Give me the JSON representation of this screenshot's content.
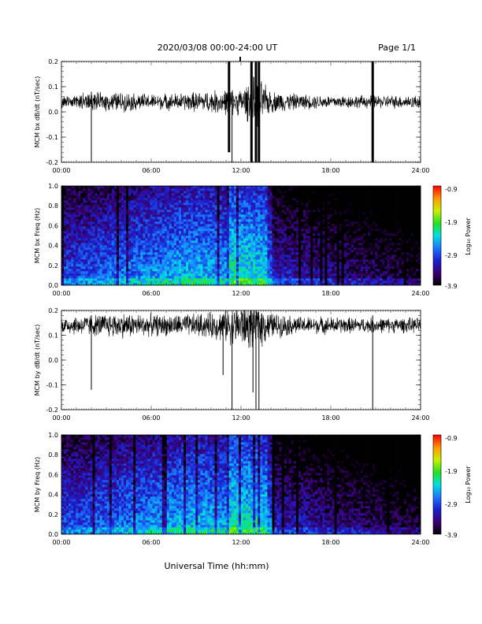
{
  "header": {
    "title": "2020/03/08  00:00-24:00 UT",
    "page": "Page 1/1"
  },
  "xlabel": "Universal Time (hh:mm)",
  "colors": {
    "trace": "#000000",
    "background": "#ffffff"
  },
  "chart_data": [
    {
      "type": "line",
      "name": "panel-bx-dbdt",
      "ylabel": "MCM bx dB/dt (nT/sec)",
      "ylim": [
        -0.2,
        0.2
      ],
      "yticks": [
        "-0.2",
        "-0.1",
        "0.0",
        "0.1",
        "0.2"
      ],
      "yticks_values": [
        -0.2,
        -0.1,
        0.0,
        0.1,
        0.2
      ],
      "xlim": [
        0,
        24
      ],
      "xticks": [
        "00:00",
        "06:00",
        "12:00",
        "18:00",
        "24:00"
      ],
      "baseline": 0.04,
      "envelope_hours": [
        0,
        2,
        4,
        6,
        8,
        10,
        11,
        12,
        13,
        14,
        16,
        18,
        20,
        22,
        24
      ],
      "envelope_half_width": [
        0.03,
        0.04,
        0.045,
        0.035,
        0.04,
        0.05,
        0.06,
        0.06,
        0.12,
        0.05,
        0.035,
        0.03,
        0.03,
        0.03,
        0.03
      ],
      "spikes": [
        {
          "hour": 2.0,
          "low": -0.2
        },
        {
          "hour": 11.2,
          "low": -0.16,
          "high": 0.2
        },
        {
          "hour": 11.4,
          "low": -0.2
        },
        {
          "hour": 12.7,
          "low": -0.2,
          "high": 0.2
        },
        {
          "hour": 13.0,
          "low": -0.2,
          "high": 0.2
        },
        {
          "hour": 13.2,
          "low": -0.2,
          "high": 0.2
        },
        {
          "hour": 20.8,
          "low": -0.2,
          "high": 0.2
        }
      ]
    },
    {
      "type": "heatmap",
      "name": "panel-bx-spectrogram",
      "ylabel": "MCM bx Freq (Hz)",
      "ylim": [
        0,
        1.0
      ],
      "yticks": [
        "0.0",
        "0.2",
        "0.4",
        "0.6",
        "0.8",
        "1.0"
      ],
      "yticks_values": [
        0,
        0.2,
        0.4,
        0.6,
        0.8,
        1.0
      ],
      "xlim": [
        0,
        24
      ],
      "xticks": [
        "00:00",
        "06:00",
        "12:00",
        "18:00",
        "24:00"
      ],
      "colorbar_label": "Log₁₀ Power",
      "colorbar_ticks": [
        "-0.9",
        "-1.9",
        "-2.9",
        "-3.9"
      ],
      "colorbar_ticks_values": [
        -0.9,
        -1.9,
        -2.9,
        -3.9
      ],
      "clim": [
        -3.9,
        -0.9
      ]
    },
    {
      "type": "line",
      "name": "panel-by-dbdt",
      "ylabel": "MCM by dB/dt (nT/sec)",
      "ylim": [
        -0.2,
        0.2
      ],
      "yticks": [
        "-0.2",
        "-0.1",
        "0.0",
        "0.1",
        "0.2"
      ],
      "yticks_values": [
        -0.2,
        -0.1,
        0.0,
        0.1,
        0.2
      ],
      "xlim": [
        0,
        24
      ],
      "xticks": [
        "00:00",
        "06:00",
        "12:00",
        "18:00",
        "24:00"
      ],
      "baseline": 0.14,
      "envelope_hours": [
        0,
        2,
        4,
        6,
        8,
        10,
        11,
        12,
        13,
        14,
        16,
        18,
        20,
        22,
        24
      ],
      "envelope_half_width": [
        0.04,
        0.05,
        0.06,
        0.05,
        0.05,
        0.06,
        0.08,
        0.1,
        0.12,
        0.06,
        0.04,
        0.04,
        0.035,
        0.035,
        0.035
      ],
      "spikes": [
        {
          "hour": 2.0,
          "low": -0.12
        },
        {
          "hour": 10.8,
          "low": -0.06
        },
        {
          "hour": 11.4,
          "low": -0.2
        },
        {
          "hour": 12.8,
          "low": -0.13
        },
        {
          "hour": 13.0,
          "low": -0.2
        },
        {
          "hour": 13.2,
          "low": -0.2
        },
        {
          "hour": 20.8,
          "low": -0.2
        }
      ]
    },
    {
      "type": "heatmap",
      "name": "panel-by-spectrogram",
      "ylabel": "MCM by Freq (Hz)",
      "ylim": [
        0,
        1.0
      ],
      "yticks": [
        "0.0",
        "0.2",
        "0.4",
        "0.6",
        "0.8",
        "1.0"
      ],
      "yticks_values": [
        0,
        0.2,
        0.4,
        0.6,
        0.8,
        1.0
      ],
      "xlim": [
        0,
        24
      ],
      "xticks": [
        "00:00",
        "06:00",
        "12:00",
        "18:00",
        "24:00"
      ],
      "colorbar_label": "Log₁₀ Power",
      "colorbar_ticks": [
        "-0.9",
        "-1.9",
        "-2.9",
        "-3.9"
      ],
      "colorbar_ticks_values": [
        -0.9,
        -1.9,
        -2.9,
        -3.9
      ],
      "clim": [
        -3.9,
        -0.9
      ]
    }
  ]
}
